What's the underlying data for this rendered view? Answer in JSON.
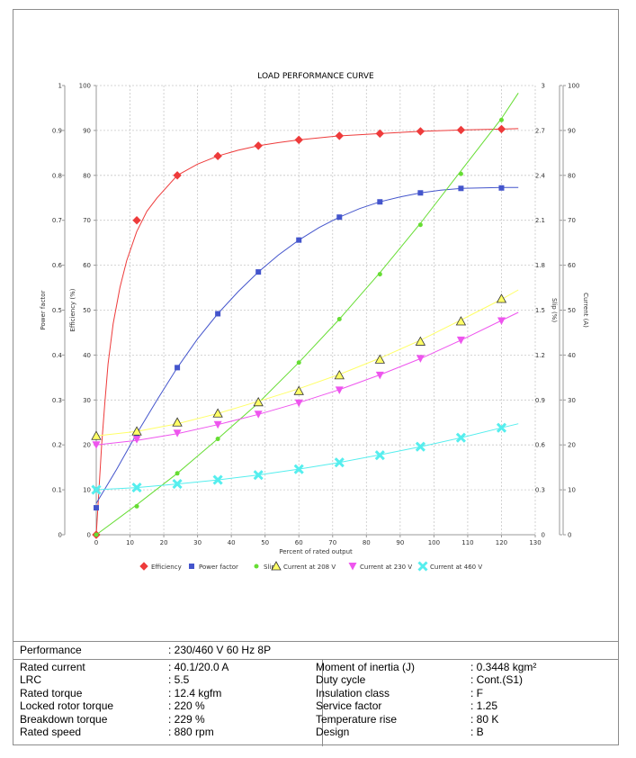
{
  "chart_data": {
    "type": "line",
    "title": "LOAD PERFORMANCE CURVE",
    "xlabel": "Percent of rated output",
    "xlim": [
      0,
      130
    ],
    "xticks": [
      0,
      10,
      20,
      30,
      40,
      50,
      60,
      70,
      80,
      90,
      100,
      110,
      120,
      130
    ],
    "axes": {
      "power_factor": {
        "label": "Power factor",
        "range": [
          0,
          1
        ],
        "ticks": [
          "0",
          "0.1",
          "0.2",
          "0.3",
          "0.4",
          "0.5",
          "0.6",
          "0.7",
          "0.8",
          "0.9",
          "1"
        ]
      },
      "efficiency": {
        "label": "Efficiency (%)",
        "range": [
          0,
          100
        ],
        "ticks": [
          "0",
          "10",
          "20",
          "30",
          "40",
          "50",
          "60",
          "70",
          "80",
          "90",
          "100"
        ]
      },
      "slip": {
        "label": "Slip (%)",
        "range": [
          0,
          3
        ],
        "ticks": [
          "0",
          "0.3",
          "0.6",
          "0.9",
          "1.2",
          "1.5",
          "1.8",
          "2.1",
          "2.4",
          "2.7",
          "3"
        ]
      },
      "current": {
        "label": "Current (A)",
        "range": [
          0,
          100
        ],
        "ticks": [
          "0",
          "10",
          "20",
          "30",
          "40",
          "50",
          "60",
          "70",
          "80",
          "90",
          "100"
        ]
      }
    },
    "grid": true,
    "legend_position": "bottom",
    "series": [
      {
        "name": "Efficiency",
        "axis": "efficiency",
        "color": "#ee3b3b",
        "marker": "diamond",
        "x": [
          0,
          12,
          24,
          36,
          48,
          60,
          72,
          84,
          96,
          108,
          120
        ],
        "y": [
          0,
          70,
          80,
          84.3,
          86.6,
          87.9,
          88.8,
          89.3,
          89.8,
          90.1,
          90.3
        ],
        "curve_x": [
          0,
          0.8,
          1.6,
          2.5,
          3.5,
          5,
          7,
          9,
          12,
          15,
          18,
          24,
          30,
          36,
          42,
          48,
          54,
          60,
          72,
          84,
          96,
          108,
          120,
          125
        ],
        "curve_y": [
          0,
          10,
          20,
          29,
          38,
          47,
          55,
          61,
          67.5,
          72,
          75,
          80,
          82.5,
          84.3,
          85.6,
          86.6,
          87.3,
          87.9,
          88.8,
          89.3,
          89.8,
          90.1,
          90.3,
          90.4
        ]
      },
      {
        "name": "Power factor",
        "axis": "power_factor",
        "color": "#4455cc",
        "marker": "square",
        "x": [
          0,
          12,
          24,
          36,
          48,
          60,
          72,
          84,
          96,
          108,
          120
        ],
        "y": [
          0.06,
          0.225,
          0.372,
          0.492,
          0.585,
          0.656,
          0.707,
          0.741,
          0.761,
          0.771,
          0.772
        ],
        "curve_x": [
          0,
          6,
          12,
          18,
          24,
          30,
          36,
          42,
          48,
          54,
          60,
          66,
          72,
          78,
          84,
          90,
          96,
          102,
          108,
          114,
          120,
          125
        ],
        "curve_y": [
          0.07,
          0.145,
          0.225,
          0.3,
          0.372,
          0.436,
          0.492,
          0.541,
          0.585,
          0.623,
          0.656,
          0.684,
          0.707,
          0.726,
          0.741,
          0.752,
          0.761,
          0.767,
          0.771,
          0.772,
          0.773,
          0.773
        ]
      },
      {
        "name": "Slip",
        "axis": "slip",
        "color": "#66dd33",
        "marker": "circle",
        "x": [
          0,
          12,
          24,
          36,
          48,
          60,
          72,
          84,
          96,
          108,
          120
        ],
        "y": [
          0,
          0.19,
          0.41,
          0.64,
          0.88,
          1.15,
          1.44,
          1.74,
          2.07,
          2.41,
          2.77
        ],
        "curve_x": [
          0,
          12,
          24,
          36,
          48,
          60,
          72,
          84,
          96,
          108,
          120,
          125
        ],
        "curve_y": [
          0,
          0.2,
          0.41,
          0.64,
          0.88,
          1.15,
          1.44,
          1.75,
          2.08,
          2.43,
          2.78,
          2.95
        ]
      },
      {
        "name": "Current at 208 V",
        "axis": "current",
        "color": "#ffff66",
        "marker": "triangle-up",
        "x": [
          0,
          12,
          24,
          36,
          48,
          60,
          72,
          84,
          96,
          108,
          120
        ],
        "y": [
          22,
          23,
          25,
          27,
          29.5,
          32,
          35.5,
          39,
          43,
          47.5,
          52.5
        ],
        "curve_x": [
          0,
          12,
          24,
          36,
          48,
          60,
          72,
          84,
          96,
          108,
          120,
          125
        ],
        "curve_y": [
          22,
          23,
          24.7,
          27,
          29.7,
          32.5,
          35.7,
          39.3,
          43.3,
          47.8,
          52.4,
          54.5
        ]
      },
      {
        "name": "Current at 230 V",
        "axis": "current",
        "color": "#ee55ee",
        "marker": "triangle-down",
        "x": [
          0,
          12,
          24,
          36,
          48,
          60,
          72,
          84,
          96,
          108,
          120
        ],
        "y": [
          20,
          21.2,
          22.6,
          24.5,
          26.8,
          29.3,
          32.2,
          35.5,
          39.2,
          43.3,
          47.6
        ],
        "curve_x": [
          0,
          12,
          24,
          36,
          48,
          60,
          72,
          84,
          96,
          108,
          120,
          125
        ],
        "curve_y": [
          20,
          21,
          22.5,
          24.5,
          26.8,
          29.4,
          32.3,
          35.6,
          39.2,
          43.3,
          47.7,
          49.5
        ]
      },
      {
        "name": "Current at 460 V",
        "axis": "current",
        "color": "#55eeee",
        "marker": "x",
        "x": [
          0,
          12,
          24,
          36,
          48,
          60,
          72,
          84,
          96,
          108,
          120
        ],
        "y": [
          10,
          10.5,
          11.3,
          12.2,
          13.3,
          14.6,
          16.1,
          17.7,
          19.6,
          21.6,
          23.8
        ],
        "curve_x": [
          0,
          12,
          24,
          36,
          48,
          60,
          72,
          84,
          96,
          108,
          120,
          125
        ],
        "curve_y": [
          10,
          10.5,
          11.3,
          12.2,
          13.3,
          14.6,
          16.1,
          17.8,
          19.6,
          21.6,
          23.8,
          24.7
        ]
      }
    ]
  },
  "specs": {
    "performance": {
      "label": "Performance",
      "value": ": 230/460 V 60 Hz 8P"
    },
    "left": [
      {
        "label": "Rated current",
        "value": ": 40.1/20.0 A"
      },
      {
        "label": "LRC",
        "value": ": 5.5"
      },
      {
        "label": "Rated torque",
        "value": ": 12.4 kgfm"
      },
      {
        "label": "Locked rotor torque",
        "value": ": 220 %"
      },
      {
        "label": "Breakdown torque",
        "value": ": 229 %"
      },
      {
        "label": "Rated speed",
        "value": ": 880 rpm"
      }
    ],
    "right": [
      {
        "label": "Moment of inertia (J)",
        "value": ": 0.3448 kgm²"
      },
      {
        "label": "Duty cycle",
        "value": ": Cont.(S1)"
      },
      {
        "label": "Insulation class",
        "value": ": F"
      },
      {
        "label": "Service factor",
        "value": ": 1.25"
      },
      {
        "label": "Temperature rise",
        "value": ": 80 K"
      },
      {
        "label": "Design",
        "value": ": B"
      }
    ]
  }
}
